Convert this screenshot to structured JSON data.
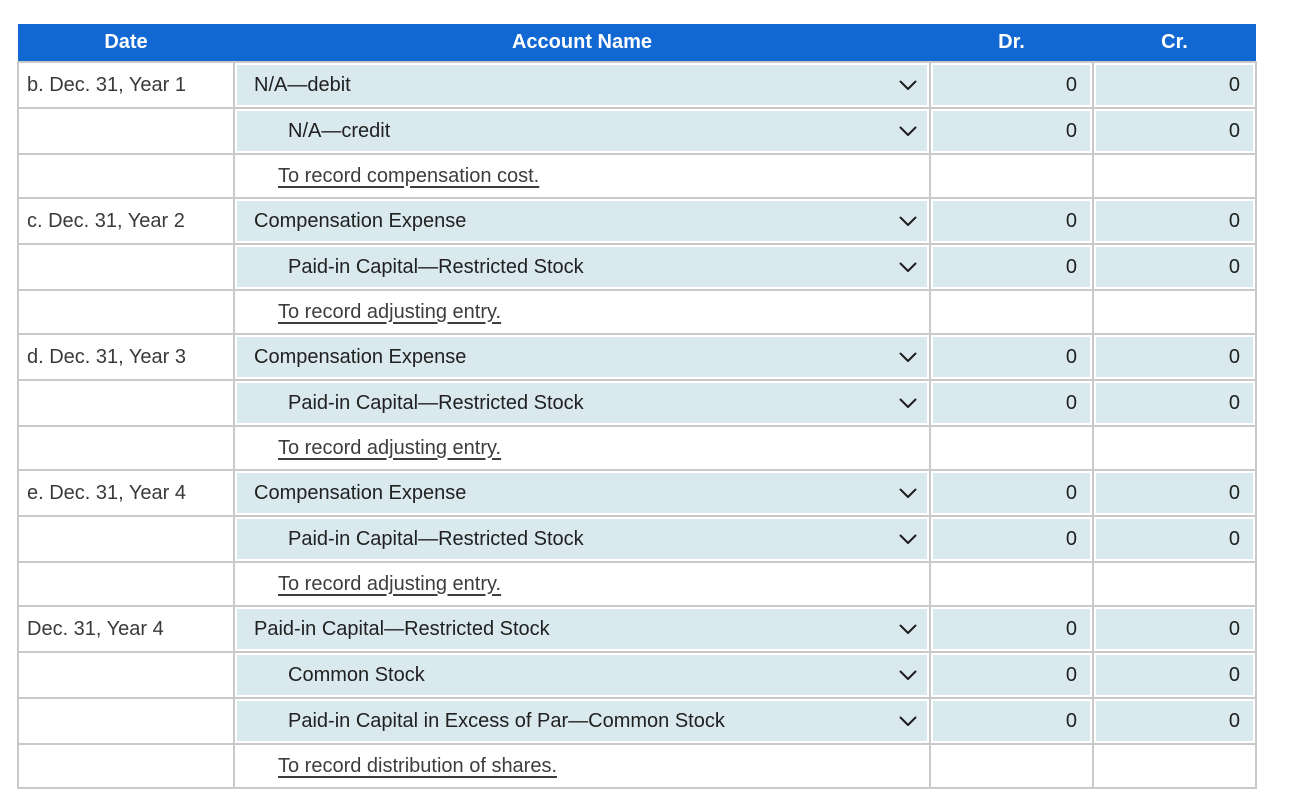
{
  "colors": {
    "header_bg": "#1268d3",
    "header_text": "#ffffff",
    "cell_fill": "#d9e9ee",
    "border": "#c9c9c9",
    "account_text": "#212121",
    "date_text": "#3a3a3a",
    "memo_text": "#3d3d3d"
  },
  "icons": {
    "dropdown": "chevron-down-icon"
  },
  "table": {
    "columns": [
      "Date",
      "Account Name",
      "Dr.",
      "Cr."
    ],
    "rows": [
      {
        "type": "entry",
        "date": "b. Dec. 31, Year 1",
        "account": "N/A—debit",
        "indent": false,
        "dr": "0",
        "cr": "0"
      },
      {
        "type": "entry",
        "date": "",
        "account": "N/A—credit",
        "indent": true,
        "dr": "0",
        "cr": "0"
      },
      {
        "type": "memo",
        "date": "",
        "memo": "To record compensation cost."
      },
      {
        "type": "entry",
        "date": "c. Dec. 31, Year 2",
        "account": "Compensation Expense",
        "indent": false,
        "dr": "0",
        "cr": "0"
      },
      {
        "type": "entry",
        "date": "",
        "account": "Paid-in Capital—Restricted Stock",
        "indent": true,
        "dr": "0",
        "cr": "0"
      },
      {
        "type": "memo",
        "date": "",
        "memo": "To record adjusting entry."
      },
      {
        "type": "entry",
        "date": "d. Dec. 31, Year 3",
        "account": "Compensation Expense",
        "indent": false,
        "dr": "0",
        "cr": "0"
      },
      {
        "type": "entry",
        "date": "",
        "account": "Paid-in Capital—Restricted Stock",
        "indent": true,
        "dr": "0",
        "cr": "0"
      },
      {
        "type": "memo",
        "date": "",
        "memo": "To record adjusting entry."
      },
      {
        "type": "entry",
        "date": "e. Dec. 31, Year 4",
        "account": "Compensation Expense",
        "indent": false,
        "dr": "0",
        "cr": "0"
      },
      {
        "type": "entry",
        "date": "",
        "account": "Paid-in Capital—Restricted Stock",
        "indent": true,
        "dr": "0",
        "cr": "0"
      },
      {
        "type": "memo",
        "date": "",
        "memo": "To record adjusting entry."
      },
      {
        "type": "entry",
        "date": "Dec. 31, Year 4",
        "account": "Paid-in Capital—Restricted Stock",
        "indent": false,
        "dr": "0",
        "cr": "0"
      },
      {
        "type": "entry",
        "date": "",
        "account": "Common Stock",
        "indent": true,
        "dr": "0",
        "cr": "0"
      },
      {
        "type": "entry",
        "date": "",
        "account": "Paid-in Capital in Excess of Par—Common Stock",
        "indent": true,
        "dr": "0",
        "cr": "0"
      },
      {
        "type": "memo",
        "date": "",
        "memo": "To record distribution of shares."
      }
    ]
  }
}
